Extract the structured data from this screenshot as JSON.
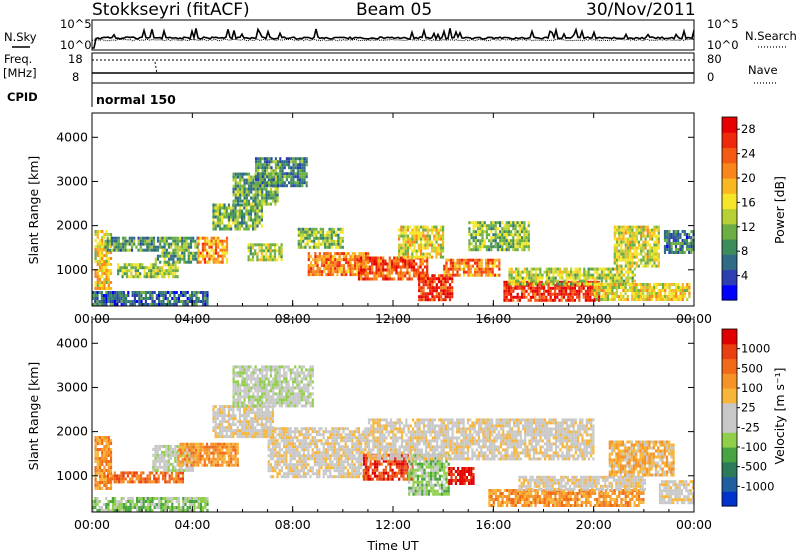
{
  "header": {
    "station": "Stokkseyri (fitACF)",
    "beam": "Beam 05",
    "date": "30/Nov/2011"
  },
  "strip": {
    "nsky_label": "N.Sky",
    "nsky_ticks": [
      "10^5",
      "10^0"
    ],
    "nsearch_label": "N.Search",
    "nsearch_ticks": [
      "10^5",
      "10^0"
    ],
    "freq_label": "Freq.",
    "freq_units": "[MHz]",
    "freq_ticks": [
      "18",
      "8"
    ],
    "nave_label": "Nave",
    "nave_ticks": [
      "80",
      "0"
    ],
    "cpid_label": "CPID",
    "cpid_value": "normal 150"
  },
  "chart_data": [
    {
      "type": "heatmap",
      "panel": "power",
      "ylabel": "Slant Range [km]",
      "y_ticks": [
        "1000",
        "2000",
        "3000",
        "4000"
      ],
      "ylim": [
        180,
        4550
      ],
      "x_ticks": [
        "00:00",
        "04:00",
        "08:00",
        "12:00",
        "16:00",
        "20:00",
        "00:00"
      ],
      "xlim_hours": [
        0,
        24
      ],
      "colorbar": {
        "label": "Power [dB]",
        "ticks": [
          "4",
          "8",
          "12",
          "16",
          "20",
          "24",
          "28"
        ],
        "range": [
          0,
          30
        ],
        "colors": [
          "#0000ff",
          "#2d3fb0",
          "#2f6a86",
          "#3d8d5c",
          "#6dae43",
          "#b7d035",
          "#f6e62a",
          "#f9b722",
          "#f8861b",
          "#f45a12",
          "#ee2a0b",
          "#e60000"
        ]
      },
      "regions": [
        {
          "t0": 0.0,
          "t1": 4.6,
          "r0": 200,
          "r1": 520,
          "level": 6
        },
        {
          "t0": 0.1,
          "t1": 0.8,
          "r0": 600,
          "r1": 1900,
          "level": 17
        },
        {
          "t0": 1.0,
          "t1": 3.4,
          "r0": 850,
          "r1": 1150,
          "level": 13
        },
        {
          "t0": 0.5,
          "t1": 2.5,
          "r0": 1450,
          "r1": 1750,
          "level": 9
        },
        {
          "t0": 2.5,
          "t1": 4.2,
          "r0": 1150,
          "r1": 1750,
          "level": 10
        },
        {
          "t0": 4.2,
          "t1": 5.4,
          "r0": 1200,
          "r1": 1750,
          "level": 20
        },
        {
          "t0": 4.8,
          "t1": 6.8,
          "r0": 1900,
          "r1": 2500,
          "level": 11
        },
        {
          "t0": 5.6,
          "t1": 7.4,
          "r0": 2500,
          "r1": 3200,
          "level": 10
        },
        {
          "t0": 6.5,
          "t1": 8.6,
          "r0": 2900,
          "r1": 3550,
          "level": 8
        },
        {
          "t0": 6.2,
          "t1": 7.6,
          "r0": 1200,
          "r1": 1600,
          "level": 14
        },
        {
          "t0": 8.2,
          "t1": 10.0,
          "r0": 1500,
          "r1": 1950,
          "level": 12
        },
        {
          "t0": 8.6,
          "t1": 11.0,
          "r0": 900,
          "r1": 1400,
          "level": 22
        },
        {
          "t0": 10.6,
          "t1": 13.4,
          "r0": 800,
          "r1": 1300,
          "level": 24
        },
        {
          "t0": 12.2,
          "t1": 14.0,
          "r0": 1300,
          "r1": 2000,
          "level": 16
        },
        {
          "t0": 13.0,
          "t1": 14.4,
          "r0": 350,
          "r1": 900,
          "level": 26
        },
        {
          "t0": 14.0,
          "t1": 16.2,
          "r0": 850,
          "r1": 1250,
          "level": 22
        },
        {
          "t0": 15.0,
          "t1": 17.4,
          "r0": 1450,
          "r1": 2100,
          "level": 12
        },
        {
          "t0": 16.4,
          "t1": 20.2,
          "r0": 320,
          "r1": 750,
          "level": 27
        },
        {
          "t0": 16.6,
          "t1": 21.6,
          "r0": 700,
          "r1": 1050,
          "level": 14
        },
        {
          "t0": 20.0,
          "t1": 23.8,
          "r0": 300,
          "r1": 700,
          "level": 16
        },
        {
          "t0": 20.8,
          "t1": 22.6,
          "r0": 1100,
          "r1": 2000,
          "level": 15
        },
        {
          "t0": 22.8,
          "t1": 24.0,
          "r0": 1400,
          "r1": 1900,
          "level": 7
        }
      ]
    },
    {
      "type": "heatmap",
      "panel": "velocity",
      "ylabel": "Slant Range [km]",
      "y_ticks": [
        "1000",
        "2000",
        "3000",
        "4000"
      ],
      "ylim": [
        180,
        4550
      ],
      "x_ticks": [
        "00:00",
        "04:00",
        "08:00",
        "12:00",
        "16:00",
        "20:00",
        "00:00"
      ],
      "xlabel": "Time UT",
      "xlim_hours": [
        0,
        24
      ],
      "colorbar": {
        "label": "Velocity [m s⁻¹]",
        "ticks": [
          "1000",
          "500",
          "100",
          "25",
          "-25",
          "-100",
          "-500",
          "-1000"
        ],
        "colors": [
          "#0033cc",
          "#1f5fa0",
          "#2c7a5a",
          "#47a440",
          "#8fcf4a",
          "#c8c8c8",
          "#c8c8c8",
          "#f7b63a",
          "#f59228",
          "#f06a1a",
          "#ea3f10",
          "#e00000"
        ]
      },
      "regions": [
        {
          "t0": 0.0,
          "t1": 4.6,
          "r0": 200,
          "r1": 520,
          "level": 4
        },
        {
          "t0": 0.1,
          "t1": 0.8,
          "r0": 700,
          "r1": 1900,
          "level": 8
        },
        {
          "t0": 0.6,
          "t1": 3.6,
          "r0": 850,
          "r1": 1100,
          "level": 9
        },
        {
          "t0": 2.4,
          "t1": 4.0,
          "r0": 1100,
          "r1": 1700,
          "level": 5
        },
        {
          "t0": 3.4,
          "t1": 5.8,
          "r0": 1250,
          "r1": 1750,
          "level": 8
        },
        {
          "t0": 4.8,
          "t1": 7.2,
          "r0": 1900,
          "r1": 2600,
          "level": 6
        },
        {
          "t0": 5.6,
          "t1": 8.8,
          "r0": 2600,
          "r1": 3500,
          "level": 5
        },
        {
          "t0": 7.0,
          "t1": 11.0,
          "r0": 1000,
          "r1": 2100,
          "level": 6
        },
        {
          "t0": 10.8,
          "t1": 12.8,
          "r0": 900,
          "r1": 1500,
          "level": 10
        },
        {
          "t0": 12.6,
          "t1": 14.2,
          "r0": 600,
          "r1": 1500,
          "level": 4
        },
        {
          "t0": 14.2,
          "t1": 15.2,
          "r0": 800,
          "r1": 1200,
          "level": 11
        },
        {
          "t0": 11.0,
          "t1": 20.0,
          "r0": 1400,
          "r1": 2300,
          "level": 6
        },
        {
          "t0": 15.8,
          "t1": 22.0,
          "r0": 350,
          "r1": 700,
          "level": 8
        },
        {
          "t0": 17.0,
          "t1": 22.0,
          "r0": 700,
          "r1": 1000,
          "level": 6
        },
        {
          "t0": 20.6,
          "t1": 23.2,
          "r0": 1000,
          "r1": 1800,
          "level": 7
        },
        {
          "t0": 22.6,
          "t1": 24.0,
          "r0": 400,
          "r1": 900,
          "level": 6
        }
      ]
    }
  ]
}
